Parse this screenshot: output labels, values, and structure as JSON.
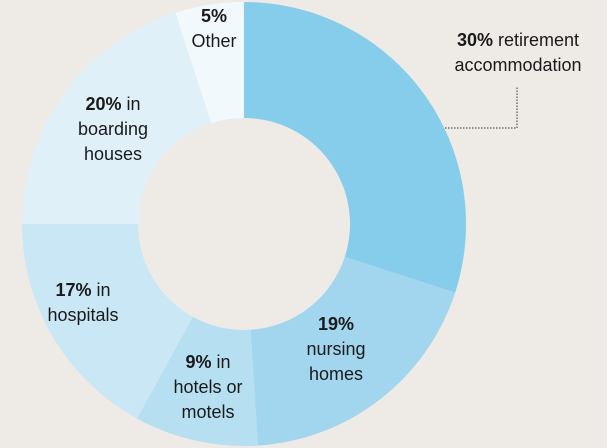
{
  "chart_data": {
    "type": "donut",
    "categories": [
      "retirement accommodation",
      "nursing homes",
      "in hotels or motels",
      "in hospitals",
      "in boarding houses",
      "Other"
    ],
    "values": [
      30,
      19,
      9,
      17,
      20,
      5
    ],
    "value_labels": [
      "30%",
      "19%",
      "9%",
      "17%",
      "20%",
      "5%"
    ],
    "colors": [
      "#85cdea",
      "#a2d6ee",
      "#b6dff1",
      "#c9e7f5",
      "#dff0f9",
      "#f2f9fd"
    ]
  }
}
